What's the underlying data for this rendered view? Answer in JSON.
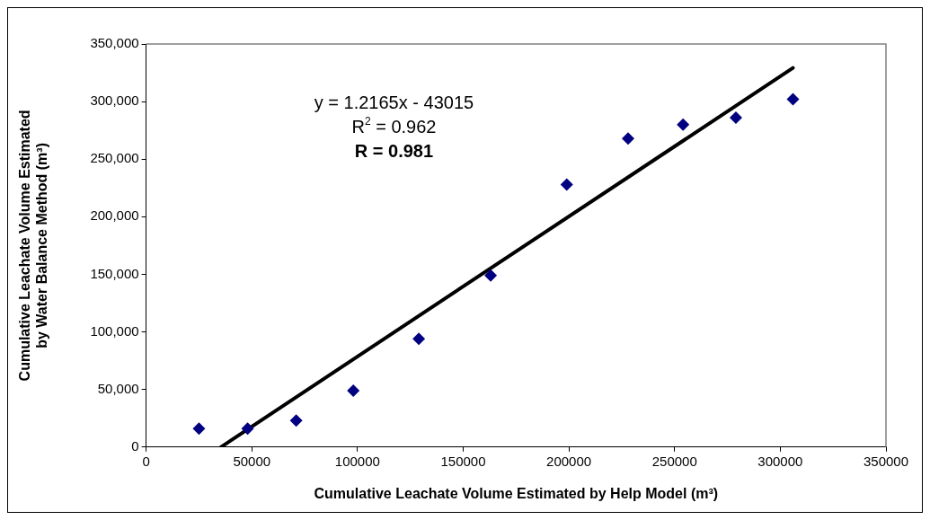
{
  "chart_data": {
    "type": "scatter",
    "xlabel": "Cumulative Leachate Volume Estimated by Help Model (m³)",
    "ylabel": "Cumulative Leachate Volume Estimated by Water Balance Method (m³)",
    "xlim": [
      0,
      350000
    ],
    "xticks": [
      0,
      50000,
      100000,
      150000,
      200000,
      250000,
      300000,
      350000
    ],
    "ylim": [
      0,
      350000
    ],
    "yticks": [
      {
        "value": 0,
        "label": "0"
      },
      {
        "value": 50000,
        "label": "50,000"
      },
      {
        "value": 100000,
        "label": "100,000"
      },
      {
        "value": 150000,
        "label": "150,000"
      },
      {
        "value": 200000,
        "label": "200,000"
      },
      {
        "value": 250000,
        "label": "250,000"
      },
      {
        "value": 300000,
        "label": "300,000"
      },
      {
        "value": 350000,
        "label": "350,000"
      }
    ],
    "grid": false,
    "legend": false,
    "series": [
      {
        "type": "scatter",
        "marker": "diamond",
        "color": "#000080",
        "x": [
          25000,
          48000,
          71000,
          98000,
          129000,
          163000,
          199000,
          228000,
          254000,
          279000,
          306000
        ],
        "values": [
          16000,
          16000,
          23000,
          49000,
          94000,
          149000,
          228000,
          268000,
          280000,
          286000,
          302000
        ]
      },
      {
        "type": "line",
        "marker": "none",
        "line_style": "solid",
        "color": "#000000",
        "x": [
          35360,
          306000
        ],
        "values": [
          0,
          329200
        ]
      }
    ],
    "annotations": [
      "y = 1.2165x - 43015",
      "R$^{2}$ = 0.962",
      "R = 0.981"
    ]
  }
}
